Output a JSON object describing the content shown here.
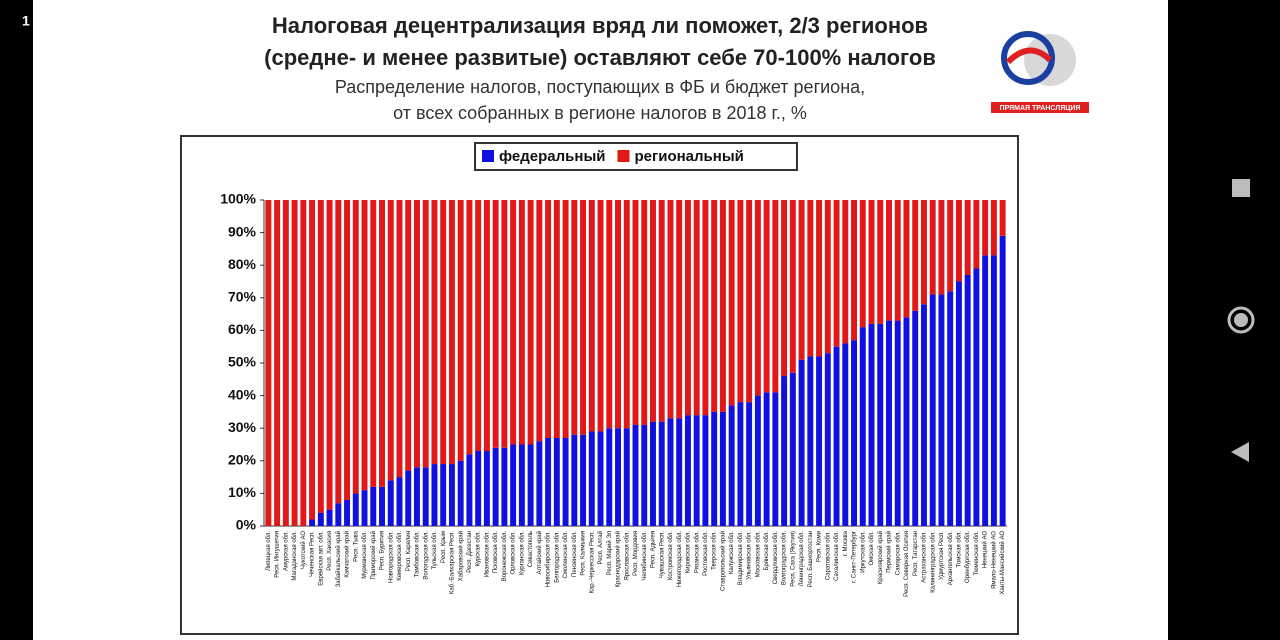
{
  "status_bar": {
    "left": "1"
  },
  "logo": {
    "caption": "ПРЯМАЯ ТРАНСЛЯЦИЯ"
  },
  "chart_data": {
    "type": "stacked_bar",
    "title": [
      "Налоговая децентрализация вряд ли поможет, 2/3 регионов",
      "(средне- и менее развитые) оставляют себе 70-100% налогов"
    ],
    "subtitle": [
      "Распределение налогов, поступающих в ФБ и бюджет региона,",
      "от всех собранных в регионе налогов в 2018 г., %"
    ],
    "legend": "top",
    "ylim": [
      0,
      100
    ],
    "yticks": [
      {
        "value": 0,
        "label": "0%"
      },
      {
        "value": 10,
        "label": "10%"
      },
      {
        "value": 20,
        "label": "20%"
      },
      {
        "value": 30,
        "label": "30%"
      },
      {
        "value": 40,
        "label": "40%"
      },
      {
        "value": 50,
        "label": "50%"
      },
      {
        "value": 60,
        "label": "60%"
      },
      {
        "value": 70,
        "label": "70%"
      },
      {
        "value": 80,
        "label": "80%"
      },
      {
        "value": 90,
        "label": "90%"
      },
      {
        "value": 100,
        "label": "100%"
      }
    ],
    "categories": [
      "Липецкая обл.",
      "Респ. Ингушетия",
      "Амурская обл.",
      "Магаданская обл.",
      "Чукотский АО",
      "Чеченская Респ.",
      "Еврейская авт. обл.",
      "Респ. Хакасия",
      "Забайкальский край",
      "Камчатский край",
      "Респ. Тыва",
      "Мурманская обл.",
      "Приморский край",
      "Респ. Бурятия",
      "Новгородская обл.",
      "Кемеровская обл.",
      "Респ. Карелия",
      "Тамбовская обл.",
      "Вологодская обл.",
      "Тульская обл.",
      "Респ. Крым",
      "Каб.-Балкарская Респ.",
      "Хабаровский край",
      "Респ. Дагестан",
      "Курская обл.",
      "Ивановская обл.",
      "Псковская обл.",
      "Воронежская обл.",
      "Орловская обл.",
      "Курганская обл.",
      "Севастополь",
      "Алтайский край",
      "Новосибирская обл.",
      "Белгородская обл.",
      "Смоленская обл.",
      "Пензенская обл.",
      "Респ. Калмыкия",
      "Кар.-Черкесская Респ.",
      "Респ. Алтай",
      "Респ. Марий Эл",
      "Краснодарский край",
      "Ярославская обл.",
      "Респ. Мордовия",
      "Челябинская обл.",
      "Респ. Адыгея",
      "Чувашская Респ.",
      "Костромская обл.",
      "Нижегородская обл.",
      "Кировская обл.",
      "Рязанская обл.",
      "Ростовская обл.",
      "Тверская обл.",
      "Ставропольский край",
      "Калужская обл.",
      "Владимирская обл.",
      "Ульяновская обл.",
      "Московская обл.",
      "Брянская обл.",
      "Свердловская обл.",
      "Волгоградская обл.",
      "Респ. Саха (Якутия)",
      "Ленинградская обл.",
      "Респ. Башкортостан",
      "Респ. Коми",
      "Саратовская обл.",
      "Сахалинская обл.",
      "г. Москва",
      "г. Санкт-Петербург",
      "Иркутская обл.",
      "Омская обл.",
      "Красноярский край",
      "Пермский край",
      "Самарская обл.",
      "Респ. Северная Осетия",
      "Респ. Татарстан",
      "Астраханская обл.",
      "Калининградская обл.",
      "Удмуртская Респ.",
      "Архангельская обл.",
      "Томская обл.",
      "Оренбургская обл.",
      "Тюменская обл.",
      "Ненецкий АО",
      "Ямало-Ненецкий АО",
      "Ханты-Мансийский АО"
    ],
    "series": [
      {
        "name": "федеральный",
        "color": "#1010e0",
        "values": [
          0,
          0,
          0,
          0,
          0,
          2,
          4,
          5,
          7,
          8,
          10,
          11,
          12,
          12,
          14,
          15,
          17,
          18,
          18,
          19,
          19,
          19,
          20,
          22,
          23,
          23,
          24,
          24,
          25,
          25,
          25,
          26,
          27,
          27,
          27,
          28,
          28,
          29,
          29,
          30,
          30,
          30,
          31,
          31,
          32,
          32,
          33,
          33,
          34,
          34,
          34,
          35,
          35,
          37,
          38,
          38,
          40,
          41,
          41,
          46,
          47,
          51,
          52,
          52,
          53,
          55,
          56,
          57,
          61,
          62,
          62,
          63,
          63,
          64,
          66,
          68,
          71,
          71,
          72,
          75,
          77,
          79,
          83,
          83,
          89
        ]
      },
      {
        "name": "региональный",
        "color": "#e01818",
        "values": [
          100,
          100,
          100,
          100,
          100,
          98,
          96,
          95,
          93,
          92,
          90,
          89,
          88,
          88,
          86,
          85,
          83,
          82,
          82,
          81,
          81,
          81,
          80,
          78,
          77,
          77,
          76,
          76,
          75,
          75,
          75,
          74,
          73,
          73,
          73,
          72,
          72,
          71,
          71,
          70,
          70,
          70,
          69,
          69,
          68,
          68,
          67,
          67,
          66,
          66,
          66,
          65,
          65,
          63,
          62,
          62,
          60,
          59,
          59,
          54,
          53,
          49,
          48,
          48,
          47,
          45,
          44,
          43,
          39,
          38,
          38,
          37,
          37,
          36,
          34,
          32,
          29,
          29,
          28,
          25,
          23,
          21,
          17,
          17,
          11
        ]
      }
    ]
  }
}
